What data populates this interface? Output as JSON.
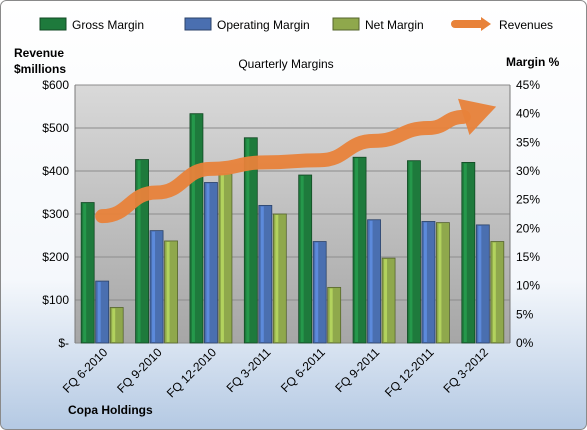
{
  "chart_data": {
    "type": "bar",
    "title": "Quarterly Margins",
    "company": "Copa Holdings",
    "left_axis_label": [
      "Revenue",
      "$millions"
    ],
    "right_axis_label": "Margin %",
    "categories": [
      "FQ 6-2010",
      "FQ 9-2010",
      "FQ 12-2010",
      "FQ 3-2011",
      "FQ 6-2011",
      "FQ 9-2011",
      "FQ 12-2011",
      "FQ 3-2012"
    ],
    "left_ticks": [
      "$-",
      "$100",
      "$200",
      "$300",
      "$400",
      "$500",
      "$600"
    ],
    "right_ticks": [
      "0%",
      "5%",
      "10%",
      "15%",
      "20%",
      "25%",
      "30%",
      "35%",
      "40%",
      "45%"
    ],
    "left_range": [
      0,
      600
    ],
    "right_range": [
      0,
      45
    ],
    "legend_position": "top",
    "series": [
      {
        "name": "Gross Margin",
        "axis": "right",
        "unit": "%",
        "color": "#1e7a3c",
        "values": [
          24.5,
          32.0,
          40.0,
          35.8,
          29.3,
          32.4,
          31.8,
          31.5
        ]
      },
      {
        "name": "Operating Margin",
        "axis": "right",
        "unit": "%",
        "color": "#4a6fb0",
        "values": [
          10.8,
          19.6,
          28.0,
          24.0,
          17.7,
          21.5,
          21.2,
          20.6
        ]
      },
      {
        "name": "Net Margin",
        "axis": "right",
        "unit": "%",
        "color": "#8fa84c",
        "values": [
          6.2,
          17.8,
          29.5,
          22.5,
          9.7,
          14.8,
          21.0,
          17.7
        ]
      },
      {
        "name": "Revenues",
        "axis": "left",
        "type": "arrow",
        "color": "#e8823a",
        "values": [
          295,
          350,
          405,
          420,
          425,
          470,
          500,
          540
        ]
      }
    ]
  }
}
